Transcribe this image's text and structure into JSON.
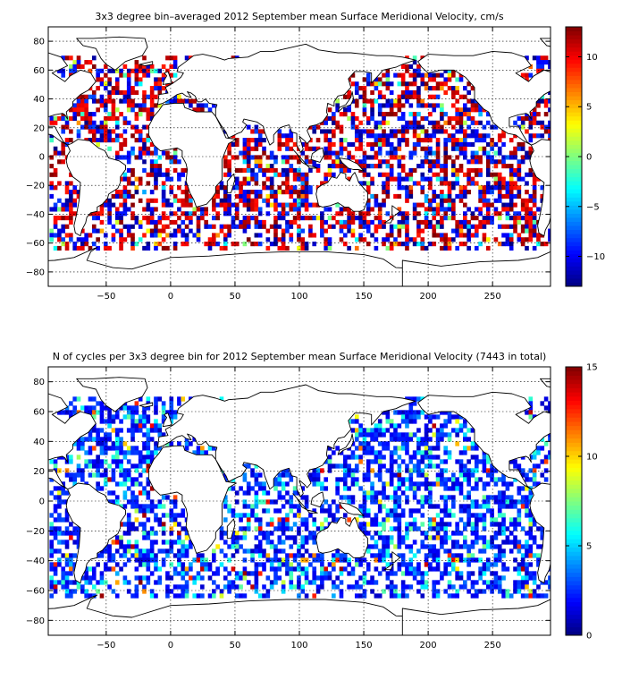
{
  "chart_data": [
    {
      "type": "heatmap",
      "title": "3x3 degree bin–averaged 2012 September mean Surface Meridional Velocity, cm/s",
      "xlabel": "",
      "ylabel": "",
      "xlim": [
        -95,
        295
      ],
      "ylim": [
        -90,
        90
      ],
      "x_ticks": [
        -50,
        0,
        50,
        100,
        150,
        200,
        250
      ],
      "x_tick_labels": [
        "−50",
        "0",
        "50",
        "100",
        "150",
        "200",
        "250"
      ],
      "y_ticks": [
        80,
        60,
        40,
        20,
        0,
        -20,
        -40,
        -60,
        -80
      ],
      "y_tick_labels": [
        "80",
        "60",
        "40",
        "20",
        "0",
        "−20",
        "−40",
        "−60",
        "−80"
      ],
      "grid": true,
      "bin_size_deg": 3,
      "colorbar": {
        "limits": [
          -13,
          13
        ],
        "ticks": [
          10,
          5,
          0,
          -5,
          -10
        ],
        "tick_labels": [
          "10",
          "5",
          "0",
          "−5",
          "−10"
        ],
        "colormap": "jet"
      }
    },
    {
      "type": "heatmap",
      "title": "N of cycles per 3x3 degree bin for 2012 September mean Surface Meridional Velocity (7443 in total)",
      "xlabel": "",
      "ylabel": "",
      "xlim": [
        -95,
        295
      ],
      "ylim": [
        -90,
        90
      ],
      "x_ticks": [
        -50,
        0,
        50,
        100,
        150,
        200,
        250
      ],
      "x_tick_labels": [
        "−50",
        "0",
        "50",
        "100",
        "150",
        "200",
        "250"
      ],
      "y_ticks": [
        80,
        60,
        40,
        20,
        0,
        -20,
        -40,
        -60,
        -80
      ],
      "y_tick_labels": [
        "80",
        "60",
        "40",
        "20",
        "0",
        "−20",
        "−40",
        "−60",
        "−80"
      ],
      "grid": true,
      "bin_size_deg": 3,
      "total_cycles": 7443,
      "colorbar": {
        "limits": [
          0,
          15
        ],
        "ticks": [
          15,
          10,
          5,
          0
        ],
        "tick_labels": [
          "15",
          "10",
          "5",
          "0"
        ],
        "colormap": "jet"
      }
    }
  ],
  "colors": {
    "frame": "#000000",
    "land": "#ffffff",
    "background": "#ffffff"
  }
}
